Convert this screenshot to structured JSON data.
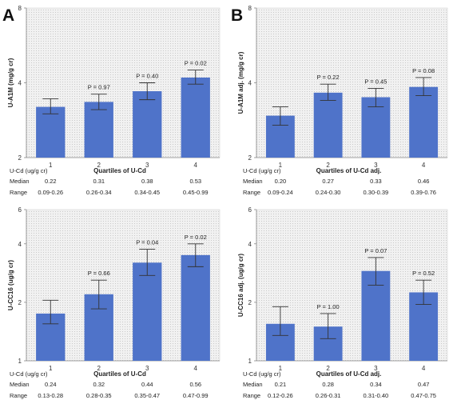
{
  "chart_data": [
    {
      "panel": "A",
      "type": "bar",
      "ylabel": "U-A1M (mg/g cr)",
      "xlabel": "Quartiles of U-Cd",
      "yscale": "log",
      "ylim": [
        2,
        8
      ],
      "yticks": [
        "2",
        "4",
        "8"
      ],
      "yticks_values": [
        2,
        4,
        8
      ],
      "categories": [
        "1",
        "2",
        "3",
        "4"
      ],
      "values": [
        3.2,
        3.35,
        3.7,
        4.2
      ],
      "err_low": [
        3.0,
        3.12,
        3.42,
        3.95
      ],
      "err_high": [
        3.45,
        3.6,
        4.0,
        4.5
      ],
      "p_values": [
        "",
        "P = 0.97",
        "P = 0.40",
        "P = 0.02"
      ],
      "row_label": "U-Cd (ug/g cr)",
      "median_label": "Median",
      "range_label": "Range",
      "medians": [
        "0.22",
        "0.31",
        "0.38",
        "0.53"
      ],
      "ranges": [
        "0.09-0.26",
        "0.26-0.34",
        "0.34-0.45",
        "0.45-0.99"
      ]
    },
    {
      "panel": "B",
      "type": "bar",
      "ylabel": "U-A1M adj. (mg/g cr)",
      "xlabel": "Quartiles of U-Cd adj.",
      "yscale": "log",
      "ylim": [
        2,
        8
      ],
      "yticks": [
        "2",
        "4",
        "8"
      ],
      "yticks_values": [
        2,
        4,
        8
      ],
      "categories": [
        "1",
        "2",
        "3",
        "4"
      ],
      "values": [
        2.95,
        3.65,
        3.5,
        3.85
      ],
      "err_low": [
        2.7,
        3.4,
        3.2,
        3.55
      ],
      "err_high": [
        3.2,
        3.95,
        3.8,
        4.2
      ],
      "p_values": [
        "",
        "P = 0.22",
        "P = 0.45",
        "P = 0.08"
      ],
      "row_label": "U-Cd (ug/g cr)",
      "median_label": "Median",
      "range_label": "Range",
      "medians": [
        "0.20",
        "0.27",
        "0.33",
        "0.46"
      ],
      "ranges": [
        "0.09-0.24",
        "0.24-0.30",
        "0.30-0.39",
        "0.39-0.76"
      ]
    },
    {
      "panel": "",
      "type": "bar",
      "ylabel": "U-CC16 (ug/g cr)",
      "xlabel": "Quartiles of U-Cd",
      "yscale": "log",
      "ylim": [
        1,
        6
      ],
      "yticks": [
        "1",
        "2",
        "4",
        "6"
      ],
      "yticks_values": [
        1,
        2,
        4,
        6
      ],
      "categories": [
        "1",
        "2",
        "3",
        "4"
      ],
      "values": [
        1.75,
        2.2,
        3.2,
        3.5
      ],
      "err_low": [
        1.55,
        1.85,
        2.75,
        3.05
      ],
      "err_high": [
        2.05,
        2.6,
        3.75,
        4.0
      ],
      "p_values": [
        "",
        "P = 0.66",
        "P = 0.04",
        "P = 0.02"
      ],
      "row_label": "U-Cd (ug/g cr)",
      "median_label": "Median",
      "range_label": "Range",
      "medians": [
        "0.24",
        "0.32",
        "0.44",
        "0.56"
      ],
      "ranges": [
        "0.13-0.28",
        "0.28-0.35",
        "0.35-0.47",
        "0.47-0.99"
      ]
    },
    {
      "panel": "",
      "type": "bar",
      "ylabel": "U-CC16 adj. (ug/g cr)",
      "xlabel": "Quartiles of U-Cd adj.",
      "yscale": "log",
      "ylim": [
        1,
        6
      ],
      "yticks": [
        "1",
        "2",
        "4",
        "6"
      ],
      "yticks_values": [
        1,
        2,
        4,
        6
      ],
      "categories": [
        "1",
        "2",
        "3",
        "4"
      ],
      "values": [
        1.55,
        1.5,
        2.9,
        2.25
      ],
      "err_low": [
        1.35,
        1.3,
        2.45,
        1.95
      ],
      "err_high": [
        1.9,
        1.75,
        3.4,
        2.6
      ],
      "p_values": [
        "",
        "P = 1.00",
        "P = 0.07",
        "P = 0.52"
      ],
      "row_label": "U-Cd (ug/g cr)",
      "median_label": "Median",
      "range_label": "Range",
      "medians": [
        "0.21",
        "0.28",
        "0.34",
        "0.47"
      ],
      "ranges": [
        "0.12-0.26",
        "0.26-0.31",
        "0.31-0.40",
        "0.47-0.75"
      ]
    }
  ],
  "colors": {
    "bar": "#4f73c9",
    "plot_bg": "#ececec",
    "axis": "#888888",
    "error": "#333333"
  }
}
